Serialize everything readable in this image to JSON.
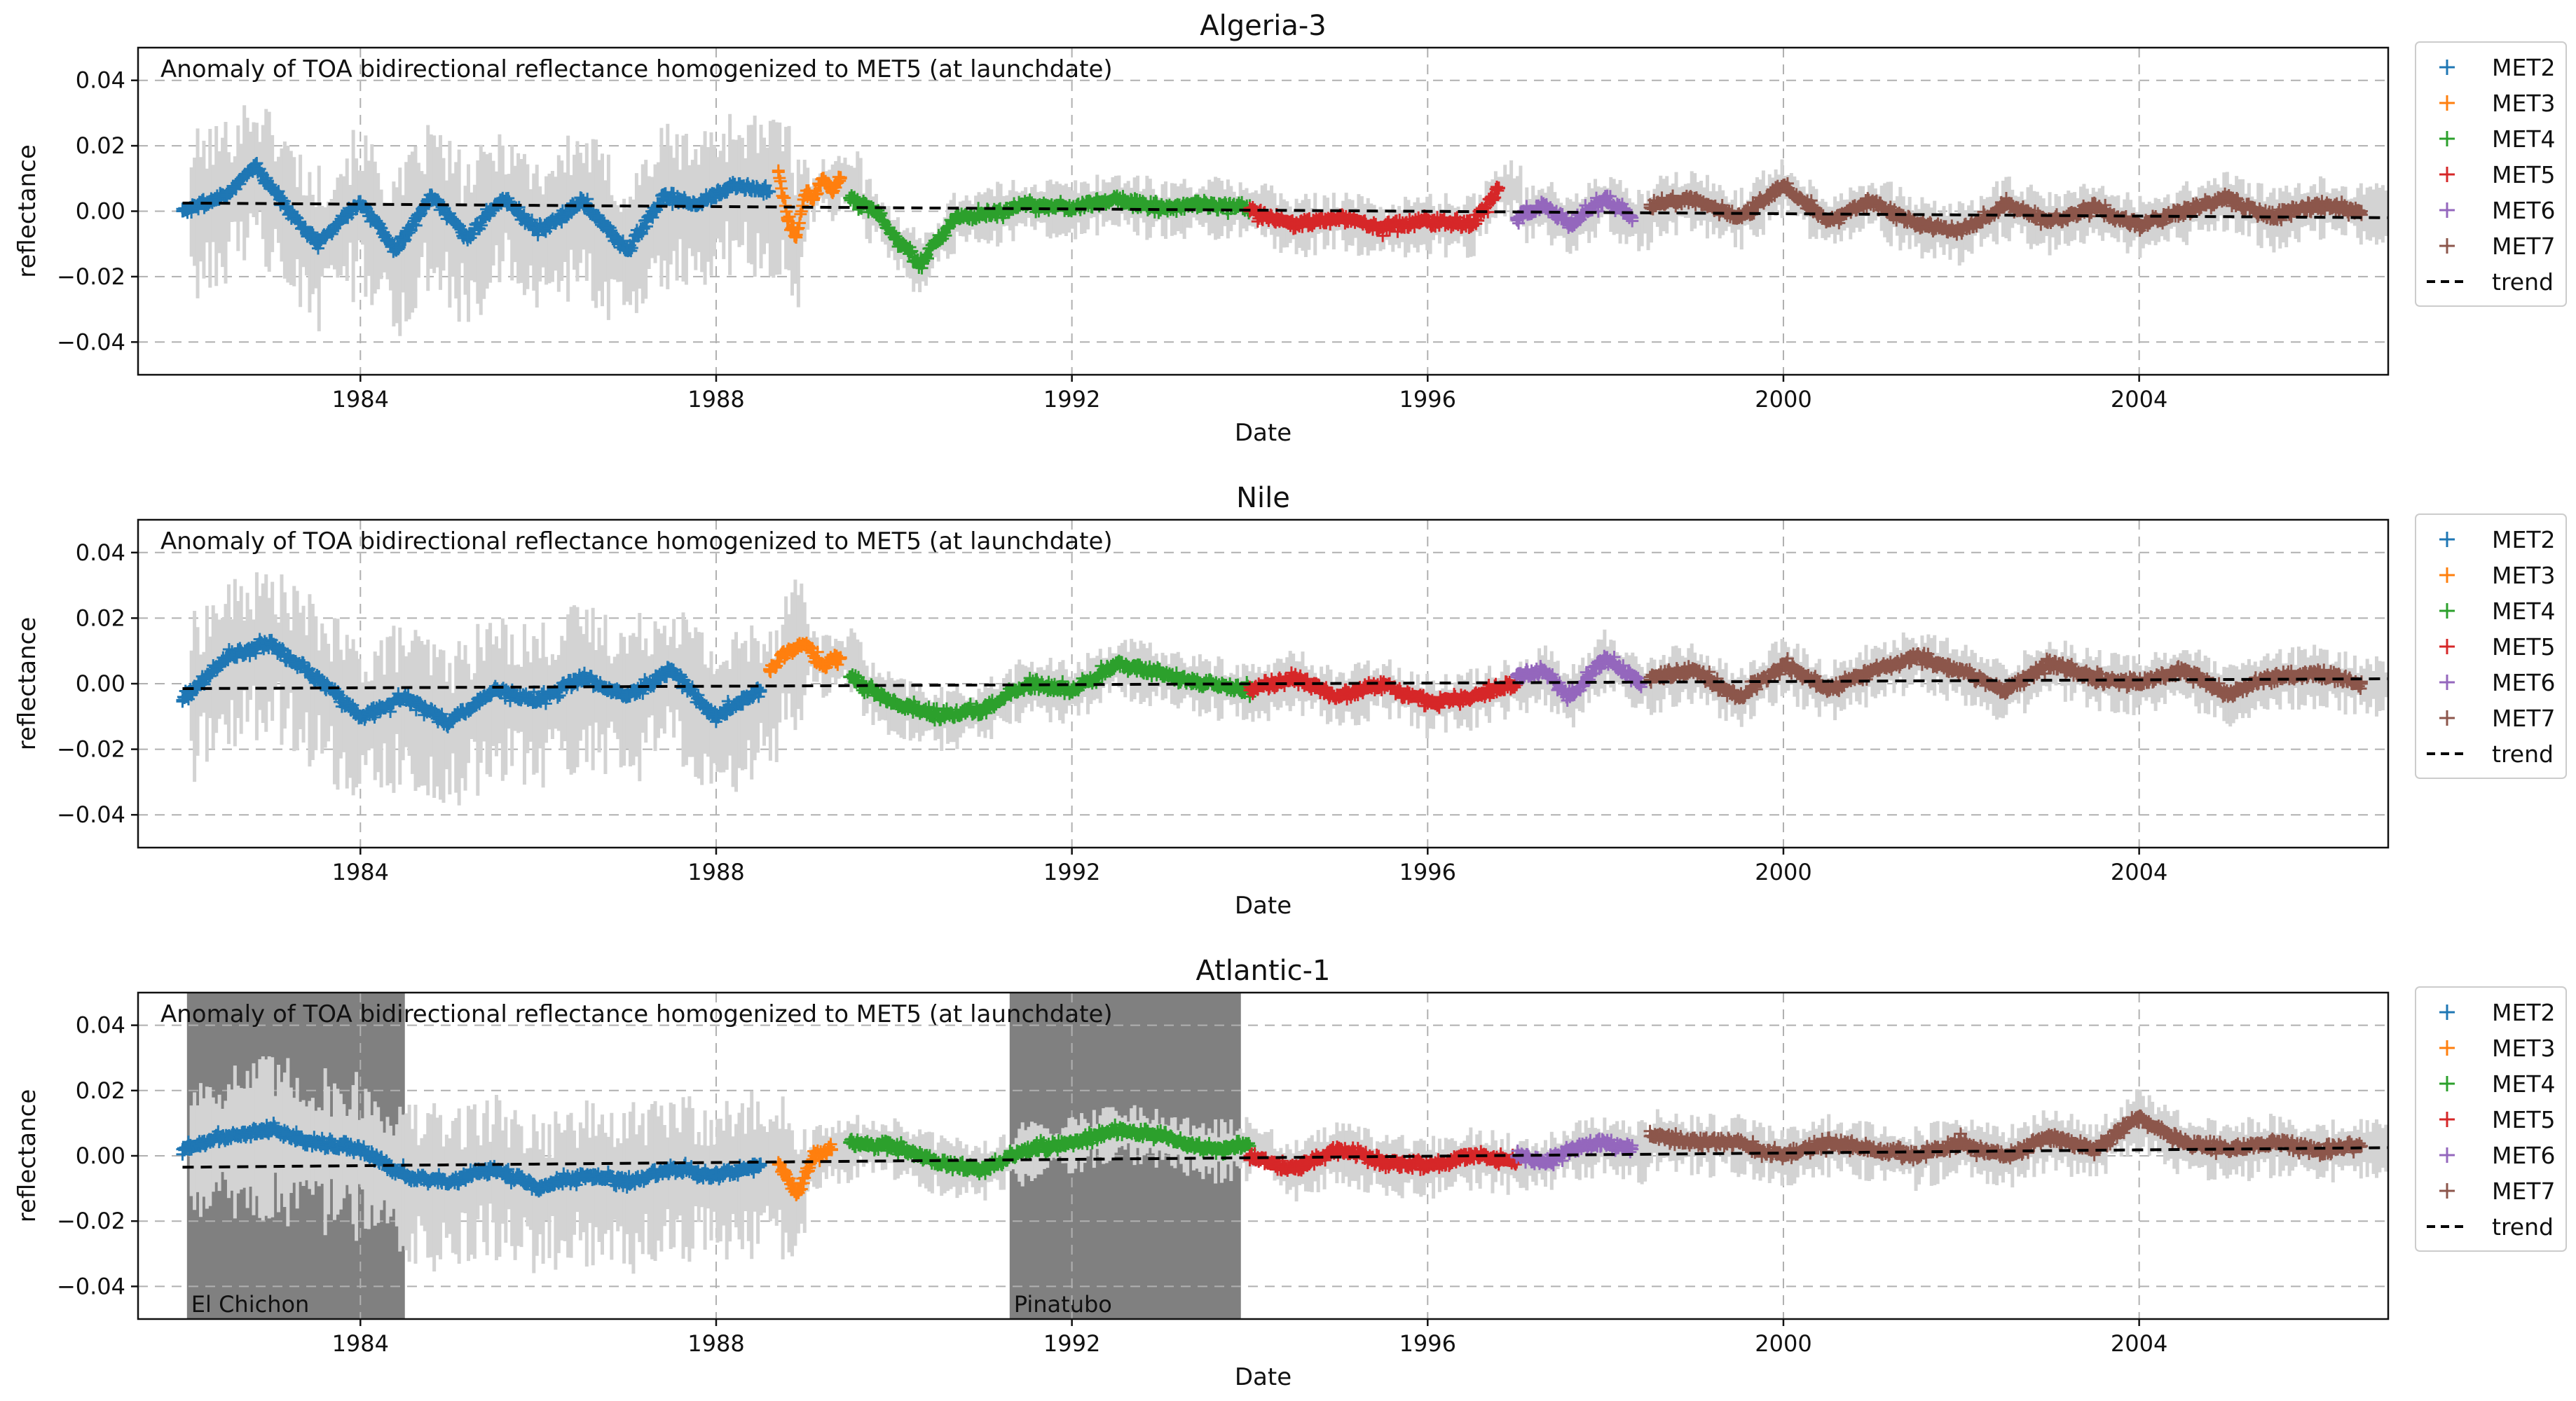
{
  "colors": {
    "MET2": "#1f77b4",
    "MET3": "#ff7f0e",
    "MET4": "#2ca02c",
    "MET5": "#d62728",
    "MET6": "#9467bd",
    "MET7": "#8c564b",
    "trend": "#000000",
    "range_band": "#d3d3d3",
    "event_shade": "#808080"
  },
  "chart_data": [
    {
      "type": "scatter",
      "title": "Algeria-3",
      "annotation": "Anomaly of TOA bidirectional reflectance homogenized to MET5 (at launchdate)",
      "xlabel": "Date",
      "ylabel": "reflectance",
      "xlim": [
        1981.5,
        2006.8
      ],
      "ylim": [
        -0.05,
        0.05
      ],
      "xticks": [
        1984,
        1988,
        1992,
        1996,
        2000,
        2004
      ],
      "yticks": [
        -0.04,
        -0.02,
        0.0,
        0.02,
        0.04
      ],
      "ytick_labels": [
        "−0.04",
        "−0.02",
        "0.00",
        "0.02",
        "0.04"
      ],
      "grid": true,
      "legend": [
        "MET2",
        "MET3",
        "MET4",
        "MET5",
        "MET6",
        "MET7",
        "trend"
      ],
      "legend_position": "outside-right",
      "trend": {
        "x": [
          1982.0,
          2006.8
        ],
        "y": [
          0.0025,
          -0.002
        ]
      },
      "events": [],
      "series": [
        {
          "name": "MET2",
          "x": [
            1982.0,
            1982.5,
            1982.8,
            1983.1,
            1983.5,
            1984.0,
            1984.4,
            1984.8,
            1985.2,
            1985.6,
            1986.0,
            1986.5,
            1987.0,
            1987.4,
            1987.8,
            1988.2,
            1988.6
          ],
          "y": [
            0.0,
            0.005,
            0.014,
            0.004,
            -0.01,
            0.003,
            -0.012,
            0.005,
            -0.008,
            0.004,
            -0.006,
            0.003,
            -0.012,
            0.004,
            0.002,
            0.008,
            0.006
          ]
        },
        {
          "name": "MET3",
          "x": [
            1988.7,
            1988.8,
            1988.9,
            1989.0,
            1989.1,
            1989.2,
            1989.3,
            1989.4
          ],
          "y": [
            0.012,
            -0.002,
            -0.008,
            0.005,
            0.004,
            0.01,
            0.006,
            0.01
          ]
        },
        {
          "name": "MET4",
          "x": [
            1989.5,
            1989.8,
            1990.0,
            1990.3,
            1990.7,
            1991.0,
            1991.5,
            1992.0,
            1992.5,
            1993.0,
            1993.5,
            1994.0
          ],
          "y": [
            0.004,
            0.0,
            -0.008,
            -0.016,
            -0.002,
            -0.001,
            0.002,
            0.001,
            0.004,
            0.001,
            0.002,
            0.001
          ]
        },
        {
          "name": "MET5",
          "x": [
            1994.0,
            1994.5,
            1995.0,
            1995.5,
            1996.0,
            1996.5,
            1996.8
          ],
          "y": [
            0.0,
            -0.004,
            -0.002,
            -0.005,
            -0.003,
            -0.004,
            0.007
          ]
        },
        {
          "name": "MET6",
          "x": [
            1997.0,
            1997.3,
            1997.6,
            1998.0,
            1998.3
          ],
          "y": [
            -0.002,
            0.002,
            -0.004,
            0.004,
            -0.002
          ]
        },
        {
          "name": "MET7",
          "x": [
            1998.5,
            1999.0,
            1999.5,
            2000.0,
            2000.5,
            2001.0,
            2001.5,
            2002.0,
            2002.5,
            2003.0,
            2003.5,
            2004.0,
            2004.5,
            2005.0,
            2005.5,
            2006.0,
            2006.5
          ],
          "y": [
            0.002,
            0.004,
            -0.002,
            0.008,
            -0.003,
            0.003,
            -0.004,
            -0.006,
            0.002,
            -0.003,
            0.001,
            -0.004,
            0.0,
            0.004,
            -0.002,
            0.002,
            0.0
          ]
        }
      ]
    },
    {
      "type": "scatter",
      "title": "Nile",
      "annotation": "Anomaly of TOA bidirectional reflectance homogenized to MET5 (at launchdate)",
      "xlabel": "Date",
      "ylabel": "reflectance",
      "xlim": [
        1981.5,
        2006.8
      ],
      "ylim": [
        -0.05,
        0.05
      ],
      "xticks": [
        1984,
        1988,
        1992,
        1996,
        2000,
        2004
      ],
      "yticks": [
        -0.04,
        -0.02,
        0.0,
        0.02,
        0.04
      ],
      "ytick_labels": [
        "−0.04",
        "−0.02",
        "0.00",
        "0.02",
        "0.04"
      ],
      "grid": true,
      "legend": [
        "MET2",
        "MET3",
        "MET4",
        "MET5",
        "MET6",
        "MET7",
        "trend"
      ],
      "legend_position": "outside-right",
      "trend": {
        "x": [
          1982.0,
          2006.8
        ],
        "y": [
          -0.0015,
          0.0015
        ]
      },
      "events": [],
      "series": [
        {
          "name": "MET2",
          "x": [
            1982.0,
            1982.5,
            1983.0,
            1983.5,
            1984.0,
            1984.5,
            1985.0,
            1985.5,
            1986.0,
            1986.5,
            1987.0,
            1987.5,
            1988.0,
            1988.5
          ],
          "y": [
            -0.005,
            0.008,
            0.012,
            0.002,
            -0.01,
            -0.004,
            -0.012,
            -0.002,
            -0.005,
            0.002,
            -0.004,
            0.004,
            -0.01,
            -0.002
          ]
        },
        {
          "name": "MET3",
          "x": [
            1988.6,
            1988.8,
            1989.0,
            1989.2,
            1989.4
          ],
          "y": [
            0.004,
            0.01,
            0.012,
            0.006,
            0.008
          ]
        },
        {
          "name": "MET4",
          "x": [
            1989.5,
            1990.0,
            1990.5,
            1991.0,
            1991.5,
            1992.0,
            1992.5,
            1993.0,
            1993.5,
            1994.0
          ],
          "y": [
            0.002,
            -0.006,
            -0.01,
            -0.008,
            0.0,
            -0.002,
            0.006,
            0.003,
            0.0,
            -0.002
          ]
        },
        {
          "name": "MET5",
          "x": [
            1994.0,
            1994.5,
            1995.0,
            1995.5,
            1996.0,
            1996.5,
            1997.0
          ],
          "y": [
            -0.002,
            0.002,
            -0.004,
            0.0,
            -0.006,
            -0.004,
            0.0
          ]
        },
        {
          "name": "MET6",
          "x": [
            1997.0,
            1997.3,
            1997.6,
            1998.0,
            1998.4
          ],
          "y": [
            0.002,
            0.004,
            -0.004,
            0.008,
            0.0
          ]
        },
        {
          "name": "MET7",
          "x": [
            1998.5,
            1999.0,
            1999.5,
            2000.0,
            2000.5,
            2001.0,
            2001.5,
            2002.0,
            2002.5,
            2003.0,
            2003.5,
            2004.0,
            2004.5,
            2005.0,
            2005.5,
            2006.0,
            2006.5
          ],
          "y": [
            0.002,
            0.004,
            -0.004,
            0.006,
            -0.002,
            0.004,
            0.008,
            0.004,
            -0.002,
            0.006,
            0.002,
            0.0,
            0.004,
            -0.003,
            0.002,
            0.003,
            0.0
          ]
        }
      ]
    },
    {
      "type": "scatter",
      "title": "Atlantic-1",
      "annotation": "Anomaly of TOA bidirectional reflectance homogenized to MET5 (at launchdate)",
      "xlabel": "Date",
      "ylabel": "reflectance",
      "xlim": [
        1981.5,
        2006.8
      ],
      "ylim": [
        -0.05,
        0.05
      ],
      "xticks": [
        1984,
        1988,
        1992,
        1996,
        2000,
        2004
      ],
      "yticks": [
        -0.04,
        -0.02,
        0.0,
        0.02,
        0.04
      ],
      "ytick_labels": [
        "−0.04",
        "−0.02",
        "0.00",
        "0.02",
        "0.04"
      ],
      "grid": true,
      "legend": [
        "MET2",
        "MET3",
        "MET4",
        "MET5",
        "MET6",
        "MET7",
        "trend"
      ],
      "legend_position": "outside-right",
      "trend": {
        "x": [
          1982.0,
          2006.8
        ],
        "y": [
          -0.0035,
          0.0025
        ]
      },
      "events": [
        {
          "label": "El Chichon",
          "x_start": 1982.05,
          "x_end": 1984.5
        },
        {
          "label": "Pinatubo",
          "x_start": 1991.3,
          "x_end": 1993.9
        }
      ],
      "series": [
        {
          "name": "MET2",
          "x": [
            1982.0,
            1982.5,
            1983.0,
            1983.5,
            1984.0,
            1984.5,
            1985.0,
            1985.5,
            1986.0,
            1986.5,
            1987.0,
            1987.5,
            1988.0,
            1988.5
          ],
          "y": [
            0.002,
            0.006,
            0.008,
            0.004,
            0.002,
            -0.006,
            -0.008,
            -0.004,
            -0.01,
            -0.006,
            -0.008,
            -0.004,
            -0.006,
            -0.003
          ]
        },
        {
          "name": "MET3",
          "x": [
            1988.7,
            1988.9,
            1989.1,
            1989.3
          ],
          "y": [
            -0.002,
            -0.012,
            0.0,
            0.002
          ]
        },
        {
          "name": "MET4",
          "x": [
            1989.5,
            1990.0,
            1990.5,
            1991.0,
            1991.5,
            1992.0,
            1992.5,
            1993.0,
            1993.5,
            1994.0
          ],
          "y": [
            0.004,
            0.003,
            -0.002,
            -0.004,
            0.002,
            0.004,
            0.008,
            0.006,
            0.002,
            0.003
          ]
        },
        {
          "name": "MET5",
          "x": [
            1994.0,
            1994.5,
            1995.0,
            1995.5,
            1996.0,
            1996.5,
            1997.0
          ],
          "y": [
            0.0,
            -0.004,
            0.002,
            -0.002,
            -0.003,
            0.0,
            -0.002
          ]
        },
        {
          "name": "MET6",
          "x": [
            1997.0,
            1997.3,
            1997.6,
            1998.0,
            1998.3
          ],
          "y": [
            0.0,
            -0.002,
            0.002,
            0.004,
            0.002
          ]
        },
        {
          "name": "MET7",
          "x": [
            1998.5,
            1999.0,
            1999.5,
            2000.0,
            2000.5,
            2001.0,
            2001.5,
            2002.0,
            2002.5,
            2003.0,
            2003.5,
            2004.0,
            2004.5,
            2005.0,
            2005.5,
            2006.0,
            2006.5
          ],
          "y": [
            0.006,
            0.004,
            0.004,
            0.0,
            0.004,
            0.002,
            0.0,
            0.004,
            0.0,
            0.006,
            0.002,
            0.012,
            0.004,
            0.002,
            0.004,
            0.002,
            0.003
          ]
        }
      ]
    }
  ]
}
